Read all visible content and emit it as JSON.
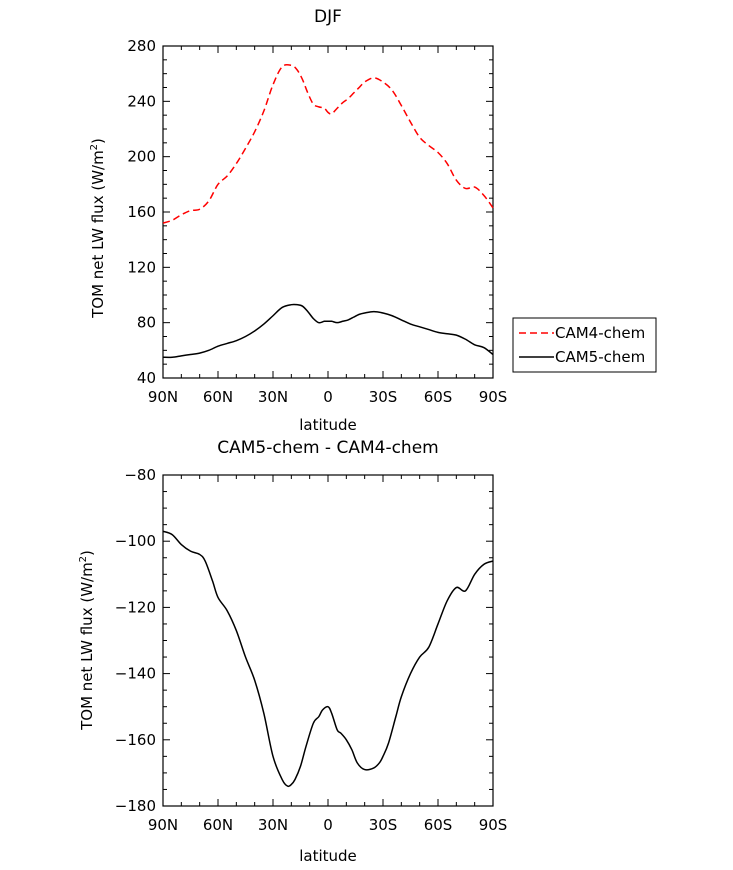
{
  "chart_data": [
    {
      "type": "line",
      "title": "DJF",
      "xlabel": "latitude",
      "ylabel": "TOM net LW flux (W/m",
      "ylabel_sup": "2",
      "ylabel_close": ")",
      "x_ticks": [
        -90,
        -60,
        -30,
        0,
        30,
        60,
        90
      ],
      "x_tick_labels": [
        "90N",
        "60N",
        "30N",
        "0",
        "30S",
        "60S",
        "90S"
      ],
      "xlim": [
        -90,
        90
      ],
      "ylim": [
        40,
        280
      ],
      "y_ticks": [
        40,
        80,
        120,
        160,
        200,
        240,
        280
      ],
      "y_tick_labels": [
        "40",
        "80",
        "120",
        "160",
        "200",
        "240",
        "280"
      ],
      "legend_position": "right",
      "series": [
        {
          "name": "CAM4-chem",
          "color": "#ff0000",
          "dash": "dashed",
          "x": [
            -90,
            -85,
            -80,
            -75,
            -70,
            -65,
            -60,
            -55,
            -50,
            -45,
            -40,
            -35,
            -30,
            -25,
            -20,
            -17,
            -14,
            -11,
            -8,
            -5,
            -2,
            0,
            2,
            5,
            8,
            11,
            14,
            17,
            20,
            25,
            30,
            35,
            40,
            45,
            50,
            55,
            60,
            65,
            70,
            75,
            80,
            85,
            90
          ],
          "values": [
            152,
            154,
            158,
            161,
            162,
            168,
            180,
            186,
            195,
            206,
            218,
            233,
            252,
            265,
            266,
            263,
            256,
            246,
            238,
            236,
            235,
            232,
            231,
            235,
            239,
            242,
            246,
            250,
            254,
            257,
            254,
            248,
            237,
            225,
            214,
            208,
            203,
            195,
            183,
            177,
            178,
            172,
            163
          ]
        },
        {
          "name": "CAM5-chem",
          "color": "#000000",
          "dash": "solid",
          "x": [
            -90,
            -85,
            -80,
            -75,
            -70,
            -65,
            -60,
            -55,
            -50,
            -45,
            -40,
            -35,
            -30,
            -25,
            -20,
            -17,
            -14,
            -11,
            -8,
            -5,
            -2,
            0,
            2,
            5,
            8,
            11,
            14,
            17,
            20,
            25,
            30,
            35,
            40,
            45,
            50,
            55,
            60,
            65,
            70,
            75,
            80,
            85,
            90
          ],
          "values": [
            55,
            55,
            56,
            57,
            58,
            60,
            63,
            65,
            67,
            70,
            74,
            79,
            85,
            91,
            93,
            93,
            92,
            88,
            83,
            80,
            81,
            81,
            81,
            80,
            81,
            82,
            84,
            86,
            87,
            88,
            87,
            85,
            82,
            79,
            77,
            75,
            73,
            72,
            71,
            68,
            64,
            62,
            57
          ]
        }
      ]
    },
    {
      "type": "line",
      "title": "CAM5-chem  -  CAM4-chem",
      "xlabel": "latitude",
      "ylabel": "TOM net LW flux (W/m",
      "ylabel_sup": "2",
      "ylabel_close": ")",
      "x_ticks": [
        -90,
        -60,
        -30,
        0,
        30,
        60,
        90
      ],
      "x_tick_labels": [
        "90N",
        "60N",
        "30N",
        "0",
        "30S",
        "60S",
        "90S"
      ],
      "xlim": [
        -90,
        90
      ],
      "ylim": [
        -180,
        -80
      ],
      "y_ticks": [
        -180,
        -160,
        -140,
        -120,
        -100,
        -80
      ],
      "y_tick_labels": [
        "−180",
        "−160",
        "−140",
        "−120",
        "−100",
        "−80"
      ],
      "series": [
        {
          "color": "#000000",
          "dash": "solid",
          "x": [
            -90,
            -85,
            -80,
            -75,
            -70,
            -67,
            -63,
            -60,
            -55,
            -50,
            -45,
            -40,
            -35,
            -30,
            -25,
            -22,
            -20,
            -18,
            -15,
            -12,
            -8,
            -5,
            -3,
            0,
            2,
            5,
            7,
            10,
            13,
            16,
            20,
            25,
            28,
            30,
            33,
            37,
            40,
            45,
            50,
            55,
            60,
            65,
            70,
            75,
            80,
            85,
            90
          ],
          "values": [
            -97,
            -98,
            -101,
            -103,
            -104,
            -106,
            -112,
            -117,
            -121,
            -127,
            -135,
            -142,
            -152,
            -165,
            -172,
            -174,
            -173.5,
            -172,
            -168,
            -162,
            -155,
            -153,
            -151,
            -150,
            -152,
            -157,
            -158,
            -160,
            -163,
            -167,
            -169,
            -168.5,
            -167,
            -165,
            -161,
            -153,
            -147,
            -140,
            -135,
            -132,
            -125,
            -118,
            -114,
            -115,
            -110,
            -107,
            -106
          ]
        }
      ]
    }
  ]
}
